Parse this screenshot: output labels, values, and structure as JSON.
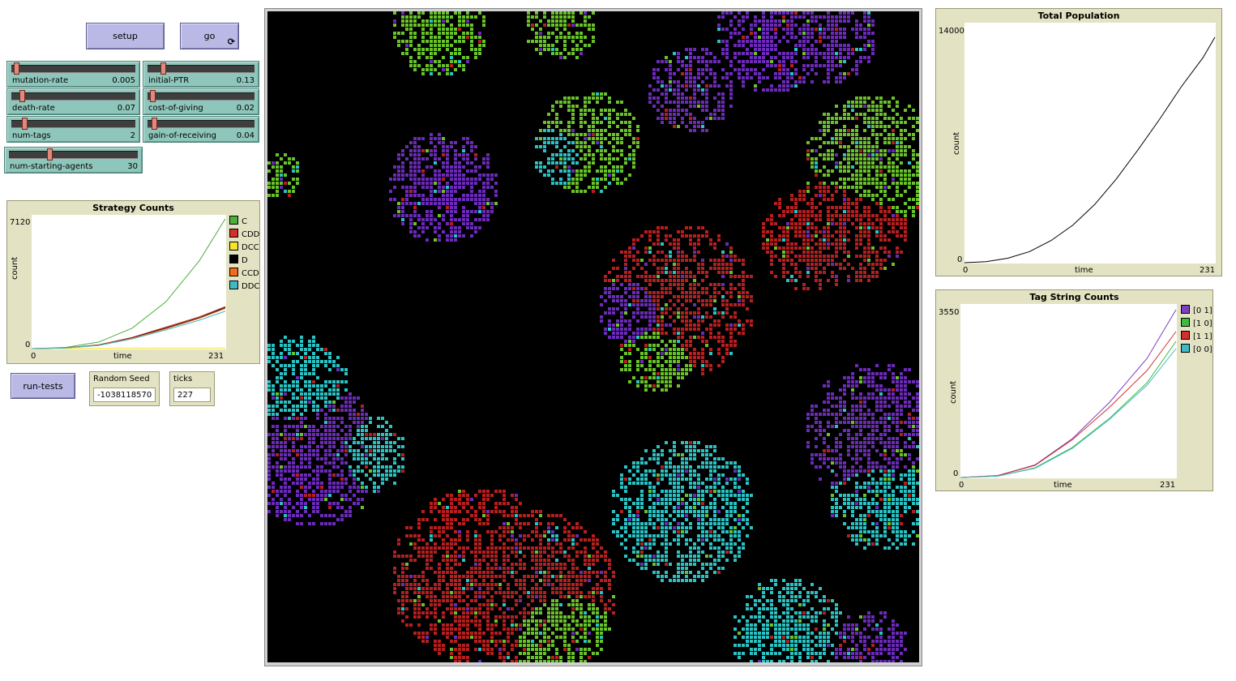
{
  "buttons": {
    "setup": "setup",
    "go": "go",
    "go_forever_glyph": "⟳",
    "run_tests": "run-tests"
  },
  "sliders": [
    {
      "id": "mutation-rate",
      "label": "mutation-rate",
      "value": "0.005",
      "fraction": 0.02
    },
    {
      "id": "initial-ptr",
      "label": "initial-PTR",
      "value": "0.13",
      "fraction": 0.13
    },
    {
      "id": "death-rate",
      "label": "death-rate",
      "value": "0.07",
      "fraction": 0.07
    },
    {
      "id": "cost-of-giving",
      "label": "cost-of-giving",
      "value": "0.02",
      "fraction": 0.02
    },
    {
      "id": "num-tags",
      "label": "num-tags",
      "value": "2",
      "fraction": 0.09
    },
    {
      "id": "gain-of-receiving",
      "label": "gain-of-receiving",
      "value": "0.04",
      "fraction": 0.04
    },
    {
      "id": "num-starting-agents",
      "label": "num-starting-agents",
      "value": "30",
      "fraction": 0.31
    }
  ],
  "monitors": {
    "random_seed": {
      "label": "Random Seed",
      "value": "-1038118570"
    },
    "ticks": {
      "label": "ticks",
      "value": "227"
    }
  },
  "colors": {
    "purple": "#6b2bb8",
    "red": "#b51f1f",
    "green": "#6ac22a",
    "cyan": "#2bc2c4"
  },
  "chart_data": [
    {
      "type": "line",
      "title": "Strategy Counts",
      "xlabel": "time",
      "ylabel": "count",
      "xmin_label": "0",
      "xmax_label": "231",
      "ymin_label": "0",
      "ymax_label": "7120",
      "xlim": [
        0,
        231
      ],
      "ylim": [
        0,
        7120
      ],
      "legend": "right",
      "series": [
        {
          "name": "C",
          "color": "#4caf3c",
          "points": [
            [
              0,
              0
            ],
            [
              40,
              60
            ],
            [
              80,
              350
            ],
            [
              120,
              1100
            ],
            [
              160,
              2500
            ],
            [
              200,
              4700
            ],
            [
              231,
              6950
            ]
          ]
        },
        {
          "name": "CDD",
          "color": "#d32f2f",
          "points": [
            [
              0,
              0
            ],
            [
              40,
              40
            ],
            [
              80,
              200
            ],
            [
              120,
              600
            ],
            [
              160,
              1150
            ],
            [
              200,
              1700
            ],
            [
              231,
              2250
            ]
          ]
        },
        {
          "name": "DCC",
          "color": "#f5e52a",
          "points": [
            [
              0,
              0
            ],
            [
              80,
              20
            ],
            [
              160,
              25
            ],
            [
              231,
              30
            ]
          ]
        },
        {
          "name": "D",
          "color": "#000000",
          "points": [
            [
              0,
              0
            ],
            [
              40,
              35
            ],
            [
              80,
              190
            ],
            [
              120,
              580
            ],
            [
              160,
              1100
            ],
            [
              200,
              1650
            ],
            [
              231,
              2200
            ]
          ]
        },
        {
          "name": "CCD",
          "color": "#f26a1b",
          "points": [
            [
              0,
              0
            ],
            [
              40,
              30
            ],
            [
              80,
              180
            ],
            [
              120,
              560
            ],
            [
              160,
              1060
            ],
            [
              200,
              1620
            ],
            [
              231,
              2150
            ]
          ]
        },
        {
          "name": "DDC",
          "color": "#3fb8c8",
          "points": [
            [
              0,
              0
            ],
            [
              40,
              30
            ],
            [
              80,
              170
            ],
            [
              120,
              520
            ],
            [
              160,
              1000
            ],
            [
              200,
              1520
            ],
            [
              231,
              2000
            ]
          ]
        }
      ]
    },
    {
      "type": "line",
      "title": "Total Population",
      "xlabel": "time",
      "ylabel": "count",
      "xmin_label": "0",
      "xmax_label": "231",
      "ymin_label": "0",
      "ymax_label": "14000",
      "xlim": [
        0,
        231
      ],
      "ylim": [
        0,
        14000
      ],
      "series": [
        {
          "name": "",
          "color": "#000000",
          "points": [
            [
              0,
              0
            ],
            [
              20,
              60
            ],
            [
              40,
              260
            ],
            [
              60,
              650
            ],
            [
              80,
              1300
            ],
            [
              100,
              2200
            ],
            [
              120,
              3400
            ],
            [
              140,
              4900
            ],
            [
              160,
              6600
            ],
            [
              180,
              8400
            ],
            [
              200,
              10300
            ],
            [
              220,
              12000
            ],
            [
              231,
              13200
            ]
          ]
        }
      ]
    },
    {
      "type": "line",
      "title": "Tag String Counts",
      "xlabel": "time",
      "ylabel": "count",
      "xmin_label": "0",
      "xmax_label": "231",
      "ymin_label": "0",
      "ymax_label": "3550",
      "xlim": [
        0,
        231
      ],
      "ylim": [
        0,
        3550
      ],
      "legend": "right",
      "series": [
        {
          "name": "[0 1]",
          "color": "#7e3fbf",
          "points": [
            [
              0,
              0
            ],
            [
              40,
              40
            ],
            [
              80,
              260
            ],
            [
              120,
              800
            ],
            [
              160,
              1550
            ],
            [
              200,
              2450
            ],
            [
              231,
              3450
            ]
          ]
        },
        {
          "name": "[1 0]",
          "color": "#3dbb3d",
          "points": [
            [
              0,
              0
            ],
            [
              40,
              30
            ],
            [
              80,
              200
            ],
            [
              120,
              620
            ],
            [
              160,
              1220
            ],
            [
              200,
              1950
            ],
            [
              231,
              2800
            ]
          ]
        },
        {
          "name": "[1 1]",
          "color": "#d32f2f",
          "points": [
            [
              0,
              0
            ],
            [
              40,
              40
            ],
            [
              80,
              250
            ],
            [
              120,
              780
            ],
            [
              160,
              1450
            ],
            [
              200,
              2200
            ],
            [
              231,
              3000
            ]
          ]
        },
        {
          "name": "[0 0]",
          "color": "#3fb8c8",
          "points": [
            [
              0,
              0
            ],
            [
              40,
              30
            ],
            [
              80,
              190
            ],
            [
              120,
              600
            ],
            [
              160,
              1200
            ],
            [
              200,
              1900
            ],
            [
              231,
              2650
            ]
          ]
        }
      ]
    }
  ]
}
